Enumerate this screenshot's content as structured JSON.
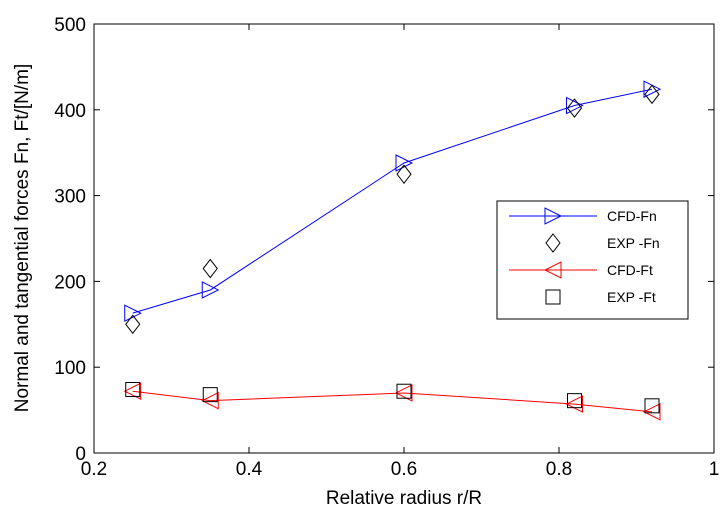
{
  "chart_data": {
    "type": "line",
    "xlabel": "Relative radius r/R",
    "ylabel": "Normal and tangential forces Fn, Ft/[N/m]",
    "xlim": [
      0.2,
      1
    ],
    "ylim": [
      0,
      500
    ],
    "xticks": [
      "0.2",
      "0.4",
      "0.6",
      "0.8",
      "1"
    ],
    "xtick_values": [
      0.2,
      0.4,
      0.6,
      0.8,
      1.0
    ],
    "yticks": [
      "0",
      "100",
      "200",
      "300",
      "400",
      "500"
    ],
    "ytick_values": [
      0,
      100,
      200,
      300,
      400,
      500
    ],
    "grid": false,
    "legend_position": "right",
    "series": [
      {
        "name": "CFD-Fn",
        "color": "#0000ff",
        "marker": "triangle-right",
        "line": true,
        "x": [
          0.25,
          0.35,
          0.6,
          0.82,
          0.92
        ],
        "y": [
          163,
          190,
          338,
          405,
          424
        ]
      },
      {
        "name": "EXP -Fn",
        "color": "#000000",
        "marker": "diamond",
        "line": false,
        "x": [
          0.25,
          0.35,
          0.6,
          0.82,
          0.92
        ],
        "y": [
          150,
          215,
          325,
          402,
          418
        ]
      },
      {
        "name": "CFD-Ft",
        "color": "#ff0000",
        "marker": "triangle-left",
        "line": true,
        "x": [
          0.25,
          0.35,
          0.6,
          0.82,
          0.92
        ],
        "y": [
          72,
          61,
          70,
          57,
          48
        ]
      },
      {
        "name": "EXP -Ft",
        "color": "#000000",
        "marker": "square",
        "line": false,
        "x": [
          0.25,
          0.35,
          0.6,
          0.82,
          0.92
        ],
        "y": [
          74,
          68,
          72,
          61,
          55
        ]
      }
    ]
  }
}
